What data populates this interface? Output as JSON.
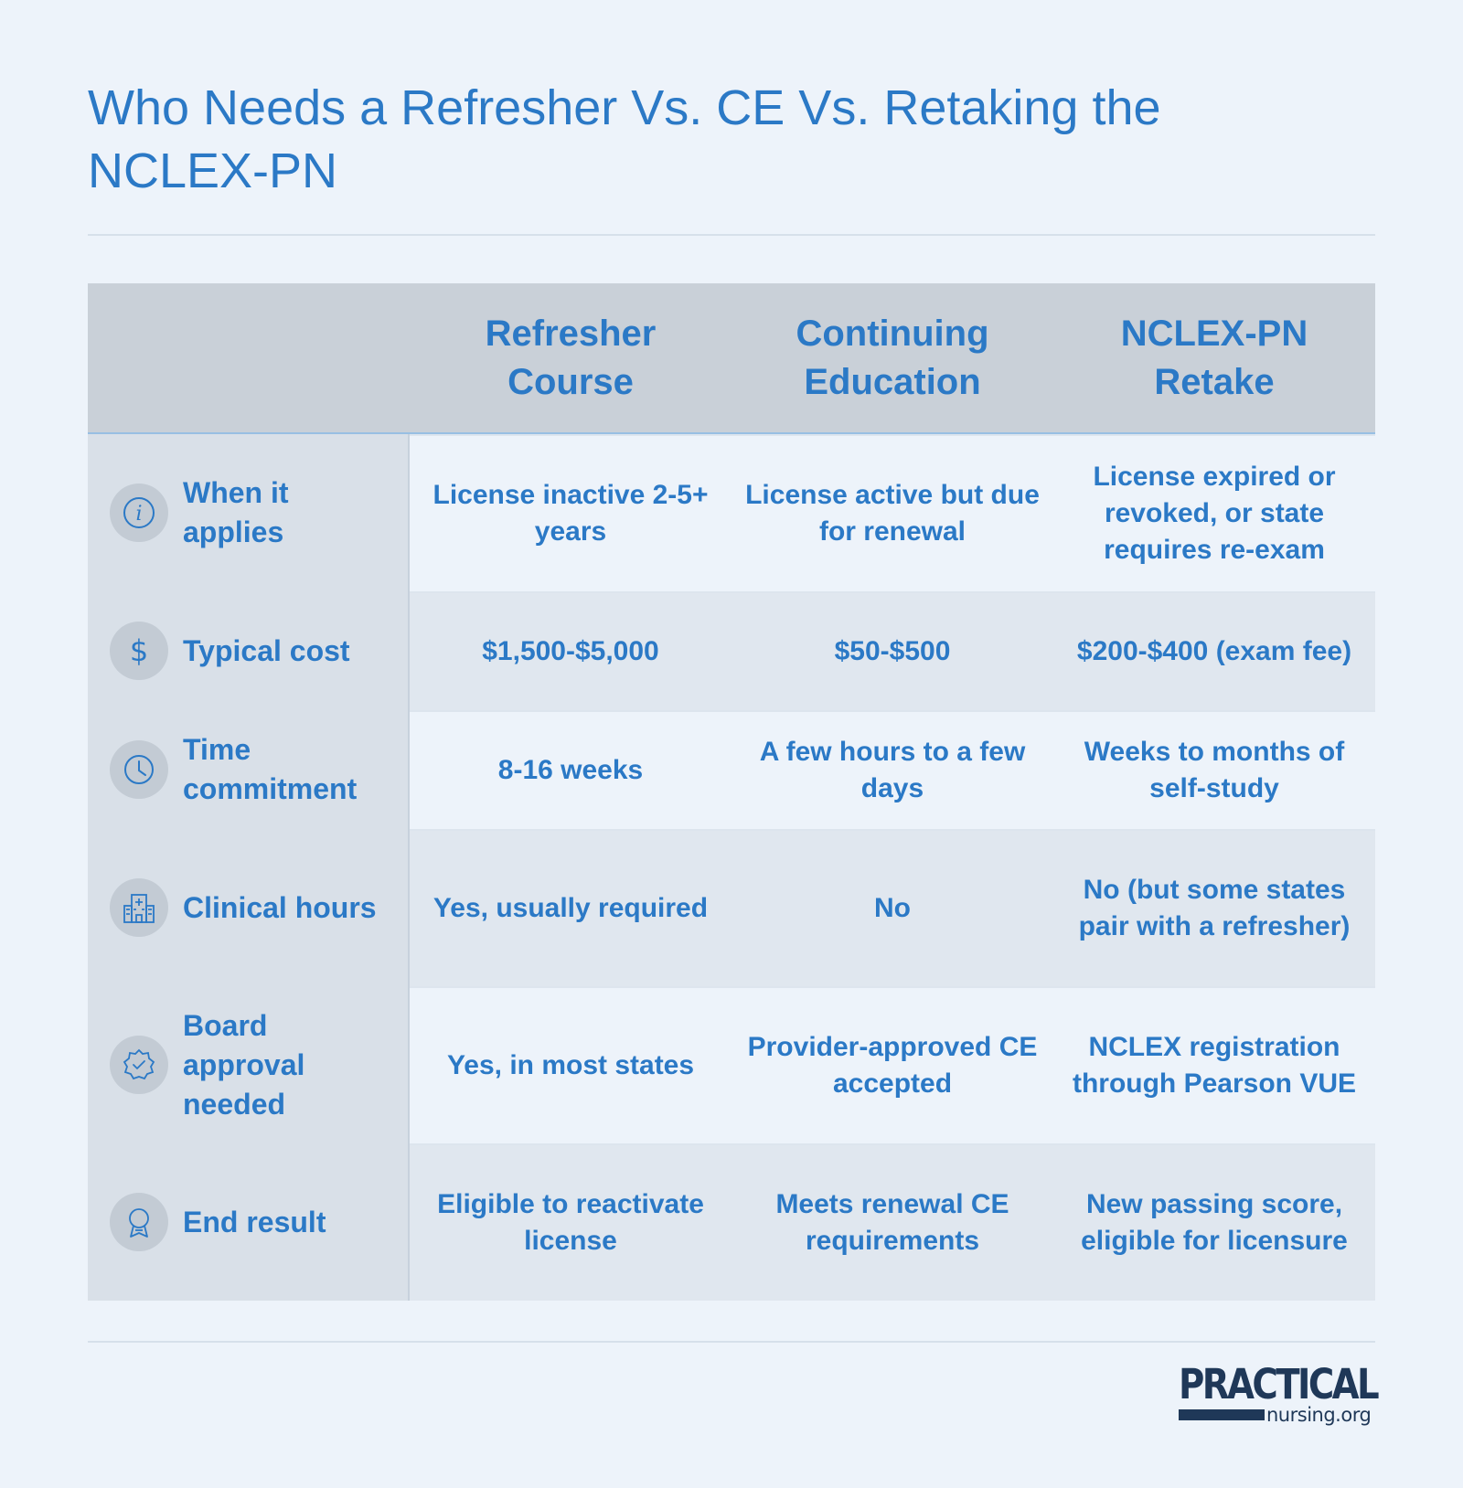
{
  "title": "Who Needs a Refresher Vs. CE Vs. Retaking the NCLEX-PN",
  "columns": [
    "Refresher Course",
    "Continuing Education",
    "NCLEX-PN Retake"
  ],
  "rows": [
    {
      "label": "When it applies",
      "icon": "info-icon",
      "cells": [
        "License inactive 2-5+ years",
        "License active but due for renewal",
        "License expired or revoked, or state requires re-exam"
      ]
    },
    {
      "label": "Typical cost",
      "icon": "dollar-icon",
      "cells": [
        "$1,500-$5,000",
        "$50-$500",
        "$200-$400 (exam fee)"
      ]
    },
    {
      "label": "Time commitment",
      "icon": "clock-icon",
      "cells": [
        "8-16 weeks",
        "A few hours to a few days",
        "Weeks to months of self-study"
      ]
    },
    {
      "label": "Clinical hours",
      "icon": "hospital-icon",
      "cells": [
        "Yes, usually required",
        "No",
        "No (but some states pair with a refresher)"
      ]
    },
    {
      "label": "Board approval needed",
      "icon": "badge-check-icon",
      "cells": [
        "Yes, in most states",
        "Provider-approved CE accepted",
        "NCLEX registration through Pearson VUE"
      ]
    },
    {
      "label": "End result",
      "icon": "award-ribbon-icon",
      "cells": [
        "Eligible to reactivate license",
        "Meets renewal CE requirements",
        "New passing score, eligible for licensure"
      ]
    }
  ],
  "logo": {
    "main": "PRACTICAL",
    "sub": "nursing.org"
  },
  "colors": {
    "accent": "#2b79c6",
    "background": "#edf3fa",
    "header": "#c9d0d8",
    "logo": "#1f3858"
  }
}
